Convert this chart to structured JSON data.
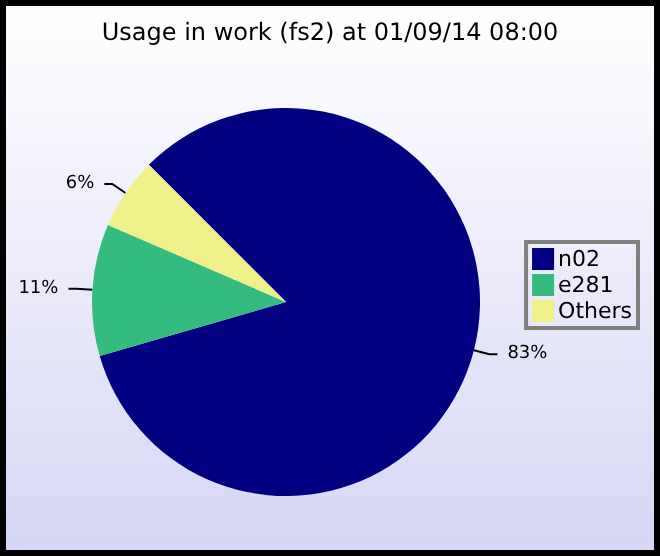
{
  "chart_data": {
    "type": "pie",
    "title": "Usage in work (fs2) at 01/09/14 08:00",
    "categories": [
      "n02",
      "e281",
      "Others"
    ],
    "values": [
      83,
      11,
      6
    ],
    "colors": [
      "#000080",
      "#33bb80",
      "#f0f08a"
    ],
    "value_labels": [
      "83%",
      "11%",
      "6%"
    ],
    "legend": "right"
  }
}
